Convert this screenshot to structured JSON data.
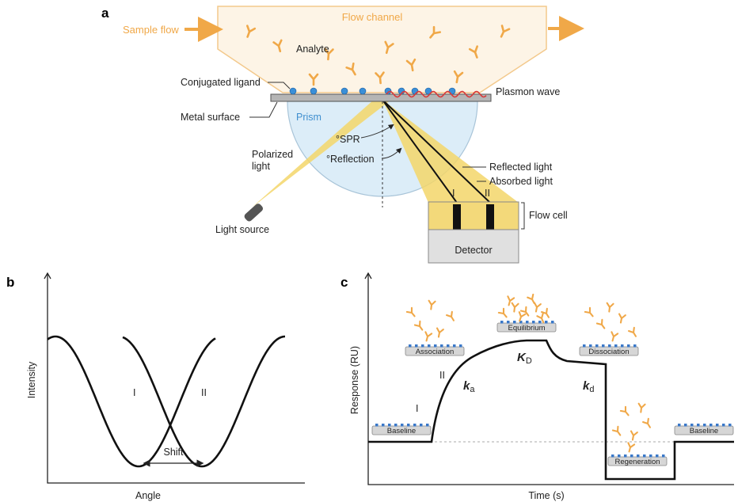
{
  "panel_a": {
    "label": "a",
    "sample_flow": "Sample flow",
    "flow_channel": "Flow channel",
    "analyte": "Analyte",
    "conjugated_ligand": "Conjugated ligand",
    "plasmon_wave": "Plasmon wave",
    "metal_surface": "Metal surface",
    "prism": "Prism",
    "spr_angle": "°SPR",
    "reflection_angle": "°Reflection",
    "polarized_light": [
      "Polarized",
      "light"
    ],
    "reflected_light": "Reflected light",
    "absorbed_light": "Absorbed light",
    "beam_1": "I",
    "beam_2": "II",
    "flow_cell": "Flow cell",
    "light_source": "Light source",
    "detector": "Detector"
  },
  "panel_b": {
    "label": "b",
    "y_axis": "Intensity",
    "x_axis": "Angle",
    "curve_1": "I",
    "curve_2": "II",
    "shift": "Shift"
  },
  "panel_c": {
    "label": "c",
    "y_axis": "Response (RU)",
    "x_axis": "Time (s)",
    "stages": [
      "Baseline",
      "Association",
      "Equilibrium",
      "Dissociation",
      "Regeneration",
      "Baseline"
    ],
    "phase_1": "I",
    "phase_2": "II",
    "ka": {
      "symbol": "k",
      "subscript": "a"
    },
    "KD": {
      "symbol": "K",
      "subscript": "D"
    },
    "kd": {
      "symbol": "k",
      "subscript": "d"
    }
  }
}
